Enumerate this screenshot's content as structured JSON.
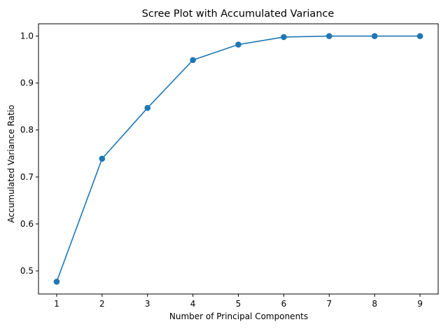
{
  "chart_data": {
    "type": "line",
    "title": "Scree Plot with Accumulated Variance",
    "xlabel": "Number of Principal Components",
    "ylabel": "Accumulated Variance Ratio",
    "x": [
      1,
      2,
      3,
      4,
      5,
      6,
      7,
      8,
      9
    ],
    "series": [
      {
        "values": [
          0.477,
          0.739,
          0.847,
          0.949,
          0.982,
          0.998,
          1.0,
          1.0,
          1.0
        ],
        "color": "#1f77b4",
        "marker": "circle"
      }
    ],
    "xticks": [
      1,
      2,
      3,
      4,
      5,
      6,
      7,
      8,
      9
    ],
    "yticks": [
      0.5,
      0.6,
      0.7,
      0.8,
      0.9,
      1.0
    ],
    "ytick_labels": [
      "0.5",
      "0.6",
      "0.7",
      "0.8",
      "0.9",
      "1.0"
    ],
    "xlim": [
      0.6,
      9.4
    ],
    "ylim": [
      0.4508,
      1.0262
    ],
    "grid": false,
    "legend": "none"
  }
}
